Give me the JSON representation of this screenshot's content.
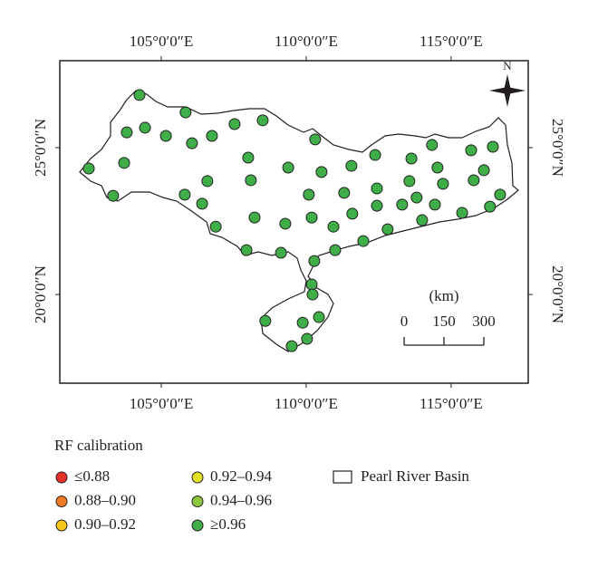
{
  "map": {
    "xlim": [
      101.5,
      117.66
    ],
    "ylim": [
      16.98,
      27.96
    ],
    "xticks": [
      {
        "value": 105,
        "label": "105°0′0″E"
      },
      {
        "value": 110,
        "label": "110°0′0″E"
      },
      {
        "value": 115,
        "label": "115°0′0″E"
      }
    ],
    "yticks": [
      {
        "value": 20,
        "label": "20°0′0″N"
      },
      {
        "value": 25,
        "label": "25°0′0″N"
      }
    ],
    "north_label": "N",
    "scale": {
      "unit": "(km)",
      "ticks": [
        0,
        150,
        300
      ]
    },
    "legend": {
      "title": "RF calibration",
      "classes": [
        {
          "label": "≤0.88",
          "color": "#e8302a"
        },
        {
          "label": "0.88–0.90",
          "color": "#f07a25"
        },
        {
          "label": "0.90–0.92",
          "color": "#f5c518"
        },
        {
          "label": "0.92–0.94",
          "color": "#e3e324"
        },
        {
          "label": "0.94–0.96",
          "color": "#8cc63f"
        },
        {
          "label": "≥0.96",
          "color": "#3fae49"
        }
      ],
      "basin": "Pearl River Basin"
    },
    "stations": {
      "class": 5,
      "lon": [
        104.25,
        103.81,
        104.44,
        105.16,
        105.84,
        106.06,
        106.75,
        107.53,
        108.5,
        102.5,
        103.72,
        103.34,
        105.81,
        106.41,
        106.59,
        106.88,
        108.0,
        108.09,
        108.22,
        107.94,
        109.13,
        109.38,
        109.28,
        110.31,
        110.53,
        110.09,
        110.19,
        110.94,
        111.31,
        111.56,
        111.59,
        110.28,
        111.0,
        111.97,
        112.38,
        112.44,
        112.44,
        112.81,
        113.31,
        113.56,
        113.81,
        114.0,
        113.63,
        114.34,
        114.53,
        114.44,
        114.72,
        115.38,
        115.69,
        115.78,
        116.13,
        116.44,
        116.34,
        116.69,
        110.19,
        110.22,
        108.59,
        109.88,
        110.44,
        110.03,
        109.5
      ],
      "lat": [
        26.79,
        25.52,
        25.68,
        25.4,
        26.2,
        25.15,
        25.4,
        25.8,
        25.93,
        24.29,
        24.48,
        23.36,
        23.4,
        23.09,
        23.86,
        22.31,
        24.66,
        23.89,
        22.62,
        21.51,
        21.42,
        24.32,
        22.41,
        25.28,
        24.17,
        23.4,
        22.62,
        22.31,
        23.46,
        24.38,
        22.75,
        21.14,
        21.51,
        21.82,
        24.75,
        23.61,
        23.02,
        22.22,
        23.06,
        23.86,
        23.3,
        22.53,
        24.63,
        25.09,
        24.32,
        23.06,
        23.77,
        22.78,
        24.91,
        23.89,
        24.23,
        25.03,
        22.99,
        23.4,
        20.34,
        20.0,
        19.1,
        19.04,
        19.23,
        18.49,
        18.24
      ]
    }
  }
}
